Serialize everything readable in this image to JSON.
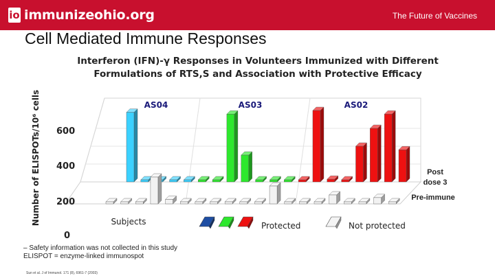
{
  "header": {
    "logo_mark": "io",
    "logo_text": "immunizeohio.org",
    "tagline": "The Future of Vaccines"
  },
  "page_title": "Cell Mediated Immune Responses",
  "footnotes": {
    "line1": "– Safety information was not collected in this study",
    "line2": "ELISPOT = enzyme-linked immunospot",
    "source": "Sun et al. J of Immunol. 171 (8), 6961-7 (2003)"
  },
  "colors": {
    "header_bg": "#c8102e",
    "as04": "#3bd1ff",
    "as04_edge": "#1e4ea3",
    "as03": "#2ee82e",
    "as02": "#ee1111",
    "pre_immune": "#f2f2f2"
  },
  "chart_data": {
    "type": "bar",
    "title": "Interferon (IFN)-γ Responses in Volunteers Immunized with Different Formulations of RTS,S and Association with Protective Efficacy",
    "ylabel": "Number of ELISPOTs/10⁶ cells",
    "xlabel": "Subjects",
    "y_ticks": [
      "0",
      "200",
      "400",
      "600"
    ],
    "ylim": [
      0,
      800
    ],
    "groups": [
      {
        "name": "AS04",
        "color": "#3bd1ff",
        "subjects": [
          {
            "post": 780,
            "pre": 20
          },
          {
            "post": 0,
            "pre": 0
          },
          {
            "post": 0,
            "pre": 0
          },
          {
            "post": 0,
            "pre": 300
          },
          {
            "post": 0,
            "pre": 50
          }
        ]
      },
      {
        "name": "AS03",
        "color": "#2ee82e",
        "subjects": [
          {
            "post": 0,
            "pre": 0
          },
          {
            "post": 0,
            "pre": 0
          },
          {
            "post": 760,
            "pre": 0
          },
          {
            "post": 300,
            "pre": 0
          },
          {
            "post": 0,
            "pre": 0
          },
          {
            "post": 0,
            "pre": 0
          },
          {
            "post": 0,
            "pre": 200
          }
        ]
      },
      {
        "name": "AS02",
        "color": "#ee1111",
        "subjects": [
          {
            "post": 0,
            "pre": 0
          },
          {
            "post": 800,
            "pre": 0
          },
          {
            "post": 30,
            "pre": 0
          },
          {
            "post": 0,
            "pre": 100
          },
          {
            "post": 400,
            "pre": 0
          },
          {
            "post": 600,
            "pre": 0
          },
          {
            "post": 760,
            "pre": 70
          },
          {
            "post": 360,
            "pre": 0
          }
        ]
      }
    ],
    "depth_series": [
      "Post dose 3",
      "Pre-immune"
    ],
    "legend": {
      "protected_label": "Protected",
      "not_protected_label": "Not protected"
    }
  }
}
